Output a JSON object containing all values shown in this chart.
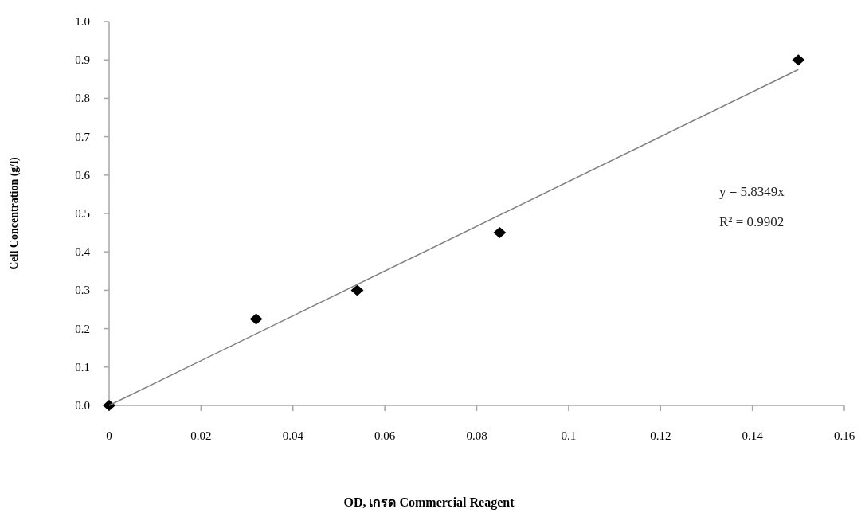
{
  "chart_data": {
    "type": "scatter",
    "xlabel": "OD, เกรด Commercial Reagent",
    "ylabel": "Cell Concentration  (g/l)",
    "x": [
      0,
      0.032,
      0.054,
      0.085,
      0.15
    ],
    "series": [
      {
        "color": "#000000",
        "marker": "diamond",
        "values": [
          0,
          0.225,
          0.3,
          0.45,
          0.9
        ]
      },
      {
        "type": "line",
        "color": "#808080",
        "marker": "none",
        "line_style": "solid",
        "x": [
          0,
          0.15
        ],
        "values": [
          0,
          0.875
        ]
      }
    ],
    "annotations": [
      "y = 5.8349x",
      "R² = 0.9902"
    ],
    "xlim": [
      0,
      0.16
    ],
    "xticks": [
      0,
      0.02,
      0.04,
      0.06,
      0.08,
      0.1,
      0.12,
      0.14,
      0.16
    ],
    "ylim": [
      0,
      1.0
    ],
    "yticks": [
      {
        "value": 0,
        "label": "0.0"
      },
      0.1,
      0.2,
      0.3,
      0.4,
      0.5,
      0.6,
      0.7,
      0.8,
      0.9,
      {
        "value": 1,
        "label": "1.0"
      }
    ],
    "grid": false
  }
}
